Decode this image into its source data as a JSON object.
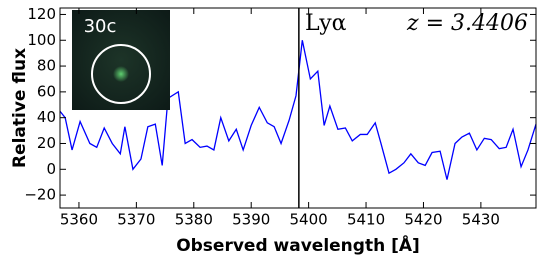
{
  "chart_data": {
    "type": "line",
    "x": [
      5356.7,
      5357.6,
      5358.8,
      5360.2,
      5361.9,
      5363.1,
      5364.4,
      5365.8,
      5367.2,
      5368.0,
      5369.4,
      5370.8,
      5372.0,
      5373.3,
      5374.5,
      5375.5,
      5377.3,
      5378.5,
      5379.7,
      5381.1,
      5382.3,
      5383.5,
      5384.7,
      5386.1,
      5387.4,
      5388.6,
      5390.0,
      5391.4,
      5392.8,
      5394.0,
      5395.2,
      5396.6,
      5397.8,
      5398.9,
      5400.3,
      5401.6,
      5402.7,
      5403.7,
      5405.1,
      5406.4,
      5407.6,
      5409.0,
      5410.2,
      5411.6,
      5412.6,
      5414.0,
      5415.2,
      5416.6,
      5417.8,
      5419.1,
      5420.3,
      5421.5,
      5422.9,
      5424.1,
      5425.5,
      5426.7,
      5428.0,
      5429.3,
      5430.6,
      5431.8,
      5433.2,
      5434.4,
      5435.6,
      5437.0,
      5438.2,
      5439.6
    ],
    "values": [
      45,
      40,
      15,
      37,
      20,
      17,
      32,
      20,
      12,
      33,
      0,
      8,
      33,
      35,
      3,
      55,
      60,
      20,
      23,
      17,
      18,
      15,
      40,
      22,
      31,
      15,
      34,
      48,
      36,
      33,
      20,
      38,
      57,
      100,
      70,
      76,
      34,
      49,
      31,
      32,
      22,
      27,
      27,
      36,
      20,
      -3,
      0,
      5,
      12,
      5,
      3,
      13,
      14,
      -8,
      20,
      25,
      28,
      15,
      24,
      23,
      16,
      17,
      31,
      2,
      15,
      35
    ],
    "color": "#0000ff",
    "vline": 5398.3,
    "xlim": [
      5356.7,
      5439.6
    ],
    "ylim": [
      -30,
      125
    ],
    "xticks": [
      5360,
      5370,
      5380,
      5390,
      5400,
      5410,
      5420,
      5430
    ],
    "yticks": [
      {
        "value": -20,
        "label": "−20"
      },
      0,
      20,
      40,
      60,
      80,
      100,
      120
    ],
    "x_label": "Observed wavelength [Å]",
    "y_label": "Relative flux",
    "annotations": [
      "Lyα",
      "z = 3.4406"
    ],
    "inset_label": "30c"
  }
}
